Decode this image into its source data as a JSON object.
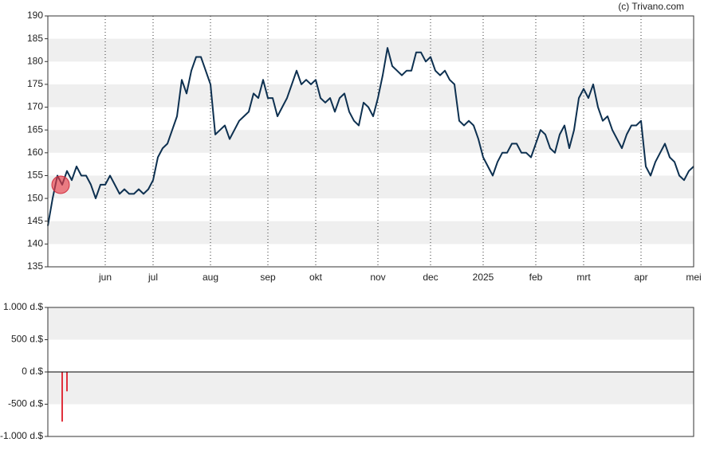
{
  "chart_data": [
    {
      "type": "line",
      "credit": "(c) Trivano.com",
      "color": "#0d3050",
      "categories": [
        null,
        null,
        null,
        null,
        null,
        null,
        null,
        null,
        null,
        null,
        null,
        null,
        "jun",
        null,
        null,
        null,
        null,
        null,
        null,
        null,
        null,
        null,
        "jul",
        null,
        null,
        null,
        null,
        null,
        null,
        null,
        null,
        null,
        null,
        null,
        "aug",
        null,
        null,
        null,
        null,
        null,
        null,
        null,
        null,
        null,
        null,
        null,
        "sep",
        null,
        null,
        null,
        null,
        null,
        null,
        null,
        null,
        null,
        "okt",
        null,
        null,
        null,
        null,
        null,
        null,
        null,
        null,
        null,
        null,
        null,
        null,
        "nov",
        null,
        null,
        null,
        null,
        null,
        null,
        null,
        null,
        null,
        null,
        "dec",
        null,
        null,
        null,
        null,
        null,
        null,
        null,
        null,
        null,
        null,
        "2025",
        null,
        null,
        null,
        null,
        null,
        null,
        null,
        null,
        null,
        null,
        "feb",
        null,
        null,
        null,
        null,
        null,
        null,
        null,
        null,
        null,
        "mrt",
        null,
        null,
        null,
        null,
        null,
        null,
        null,
        null,
        null,
        null,
        null,
        "apr",
        null,
        null,
        null,
        null,
        null,
        null,
        null,
        null,
        null,
        null,
        "mei"
      ],
      "values": [
        144,
        150,
        155,
        153,
        156,
        154,
        157,
        155,
        155,
        153,
        150,
        153,
        153,
        155,
        153,
        151,
        152,
        151,
        151,
        152,
        151,
        152,
        154,
        159,
        161,
        162,
        165,
        168,
        176,
        173,
        178,
        181,
        181,
        178,
        175,
        164,
        165,
        166,
        163,
        165,
        167,
        168,
        169,
        173,
        172,
        176,
        172,
        172,
        168,
        170,
        172,
        175,
        178,
        175,
        176,
        175,
        176,
        172,
        171,
        172,
        169,
        172,
        173,
        169,
        167,
        166,
        171,
        170,
        168,
        172,
        177,
        183,
        179,
        178,
        177,
        178,
        178,
        182,
        182,
        180,
        181,
        178,
        177,
        178,
        176,
        175,
        167,
        166,
        167,
        166,
        163,
        159,
        157,
        155,
        158,
        160,
        160,
        162,
        162,
        160,
        160,
        159,
        162,
        165,
        164,
        161,
        160,
        164,
        166,
        161,
        165,
        172,
        174,
        172,
        175,
        170,
        167,
        168,
        165,
        163,
        161,
        164,
        166,
        166,
        167,
        157,
        155,
        158,
        160,
        162,
        159,
        158,
        155,
        154,
        156,
        157
      ],
      "ylim": [
        135,
        190
      ],
      "yticks": [
        135,
        140,
        145,
        150,
        155,
        160,
        165,
        170,
        175,
        180,
        185,
        190
      ],
      "grid": true
    },
    {
      "type": "bar",
      "color": "#e0303c",
      "values": [
        null,
        null,
        null,
        -770,
        -300,
        null,
        null,
        null,
        null,
        null,
        null,
        null,
        null,
        null,
        null,
        null,
        null,
        null,
        null,
        null,
        null,
        null,
        null,
        null,
        null,
        null,
        null,
        null,
        null,
        null,
        null,
        null,
        null,
        null,
        null,
        null,
        null,
        null,
        null,
        null,
        null,
        null,
        null,
        null,
        null,
        null,
        null,
        null,
        null,
        null,
        null,
        null,
        null,
        null,
        null,
        null,
        null,
        null,
        null,
        null,
        null,
        null,
        null,
        null,
        null,
        null,
        null,
        null,
        null,
        null,
        null,
        null,
        null,
        null,
        null,
        null,
        null,
        null,
        null,
        null,
        null,
        null,
        null,
        null,
        null,
        null,
        null,
        null,
        null,
        null,
        null,
        null,
        null,
        null,
        null,
        null,
        null,
        null,
        null,
        null,
        null,
        null,
        null,
        null,
        null,
        null,
        null,
        null,
        null,
        null,
        null,
        null,
        null,
        null,
        null,
        null,
        null,
        null,
        null,
        null,
        null,
        null,
        null,
        null,
        null,
        null,
        null,
        null,
        null,
        null,
        null,
        null,
        null,
        null,
        null,
        null
      ],
      "ylim": [
        -1000,
        1000
      ],
      "yticks": [
        {
          "value": -1000,
          "label": "-1.000 d.$"
        },
        {
          "value": -500,
          "label": "-500 d.$"
        },
        {
          "value": 0,
          "label": "0 d.$"
        },
        {
          "value": 500,
          "label": "500 d.$"
        },
        {
          "value": 1000,
          "label": "1.000 d.$"
        }
      ],
      "grid": true
    }
  ]
}
